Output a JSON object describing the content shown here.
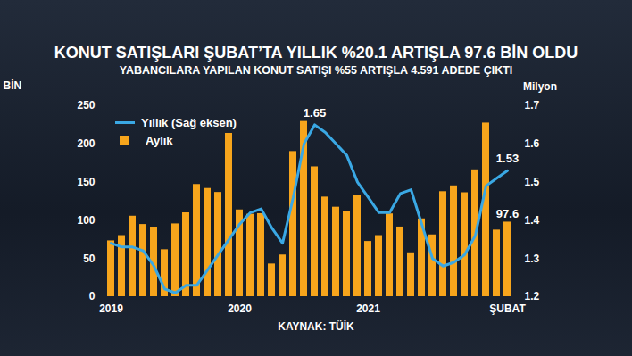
{
  "chart_data": {
    "type": "bar",
    "title": "KONUT SATIŞLARI ŞUBAT’TA YILLIK %20.1 ARTIŞLA 97.6 BİN OLDU",
    "subtitle": "YABANCILARA YAPILAN KONUT SATIŞI %55 ARTIŞLA 4.591 ADEDE ÇIKTI",
    "caption": "KAYNAK: TÜİK",
    "ylabel": "BİN",
    "y2label": "Milyon",
    "categories": [
      "2019",
      null,
      null,
      null,
      null,
      null,
      null,
      null,
      null,
      null,
      null,
      null,
      "2020",
      null,
      null,
      null,
      null,
      null,
      null,
      null,
      null,
      null,
      null,
      null,
      "2021",
      null,
      null,
      null,
      null,
      null,
      null,
      null,
      null,
      null,
      null,
      null,
      null,
      "ŞUBAT"
    ],
    "series": [
      {
        "name": "Aylık",
        "type": "bar",
        "color": "#f7a51c",
        "values": [
          73.1,
          80.0,
          105.4,
          94.5,
          91.1,
          61.5,
          95.3,
          109.8,
          146.9,
          141.7,
          136.5,
          213.8,
          113.6,
          107.9,
          108.7,
          42.8,
          54.6,
          190.0,
          229.4,
          170.0,
          130.4,
          117.2,
          111.3,
          132.0,
          72.3,
          80.0,
          108.4,
          91.2,
          57.5,
          101.9,
          80.9,
          137.5,
          145.1,
          136.1,
          166.1,
          227.3,
          87.2,
          97.6
        ],
        "value_labels": [
          null,
          null,
          null,
          null,
          null,
          null,
          null,
          null,
          null,
          null,
          null,
          null,
          null,
          null,
          null,
          null,
          null,
          null,
          null,
          null,
          null,
          null,
          null,
          null,
          null,
          null,
          null,
          null,
          null,
          null,
          null,
          null,
          null,
          null,
          null,
          null,
          null,
          "97.6"
        ]
      },
      {
        "name": "Yıllık (Sağ eksen)",
        "type": "line",
        "axis": "y2",
        "color": "#3aa8e4",
        "values": [
          1.34,
          1.33,
          1.33,
          1.32,
          1.28,
          1.22,
          1.21,
          1.23,
          1.23,
          1.27,
          1.31,
          1.35,
          1.39,
          1.42,
          1.43,
          1.38,
          1.34,
          1.46,
          1.6,
          1.65,
          1.63,
          1.6,
          1.57,
          1.5,
          1.46,
          1.42,
          1.42,
          1.47,
          1.48,
          1.39,
          1.3,
          1.28,
          1.29,
          1.31,
          1.36,
          1.49,
          1.51,
          1.53
        ],
        "value_labels": [
          null,
          null,
          null,
          null,
          null,
          null,
          null,
          null,
          null,
          null,
          null,
          null,
          null,
          null,
          null,
          null,
          null,
          null,
          null,
          "1.65",
          null,
          null,
          null,
          null,
          null,
          null,
          null,
          null,
          null,
          null,
          null,
          null,
          null,
          null,
          null,
          null,
          null,
          "1.53"
        ]
      }
    ],
    "ylim": [
      0,
      250
    ],
    "yticks": [
      0,
      50,
      100,
      150,
      200,
      250
    ],
    "y2lim": [
      1.2,
      1.7
    ],
    "y2ticks": [
      1.2,
      1.3,
      1.4,
      1.5,
      1.6,
      1.7
    ],
    "legend": "top-left",
    "grid": false
  }
}
